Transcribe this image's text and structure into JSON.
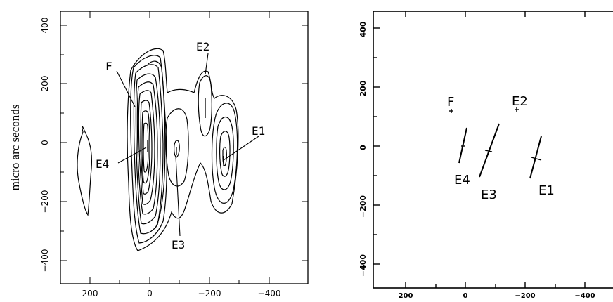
{
  "left_panel": {
    "ylabel": "micro arc seconds",
    "x_ticks": [
      "200",
      "0",
      "−200",
      "−400"
    ],
    "y_ticks": [
      "400",
      "200",
      "0",
      "−200",
      "−400"
    ],
    "labels": {
      "F": "F",
      "E1": "E1",
      "E2": "E2",
      "E3": "E3",
      "E4": "E4"
    }
  },
  "right_panel": {
    "x_ticks": [
      "200",
      "0",
      "−200",
      "−400"
    ],
    "y_ticks": [
      "400",
      "200",
      "0",
      "−200",
      "−400"
    ],
    "labels": {
      "F": "F",
      "E1": "E1",
      "E2": "E2",
      "E3": "E3",
      "E4": "E4"
    }
  }
}
